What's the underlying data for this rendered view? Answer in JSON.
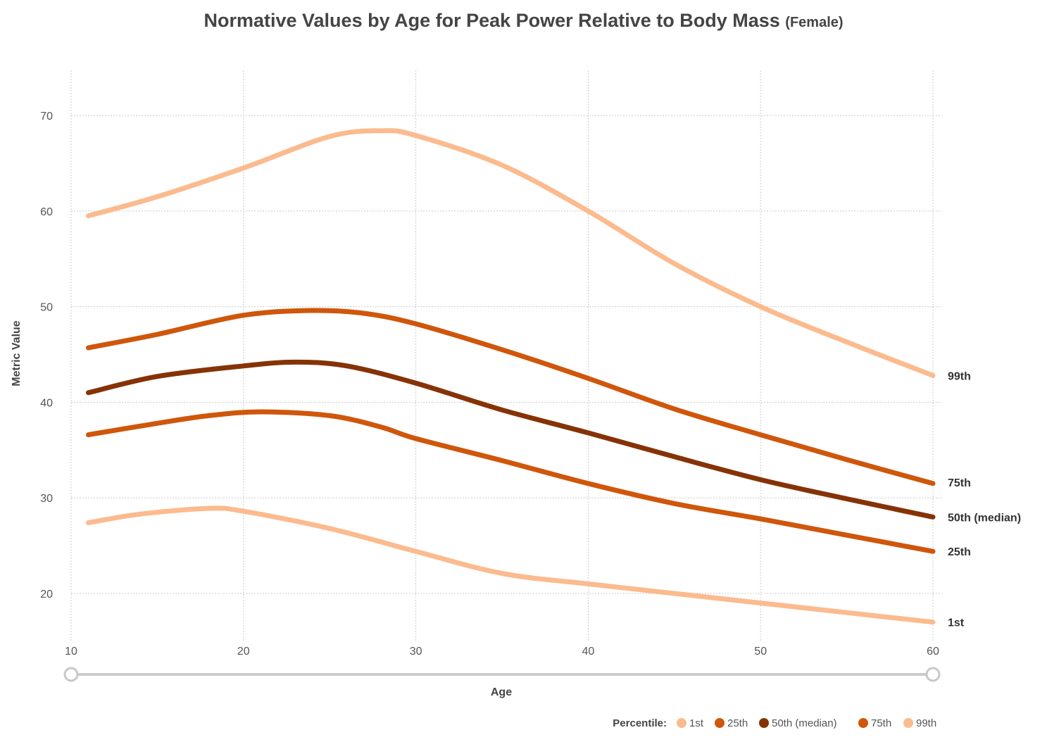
{
  "chart_data": {
    "type": "line",
    "title": "Normative Values by Age for Peak Power Relative to Body Mass",
    "subtitle": "(Female)",
    "xlabel": "Age",
    "ylabel": "Metric Value",
    "xlim": [
      10,
      60
    ],
    "ylim": [
      15,
      75
    ],
    "x_ticks": [
      10,
      20,
      30,
      40,
      50,
      60
    ],
    "y_ticks": [
      20,
      30,
      40,
      50,
      60,
      70
    ],
    "legend_title": "Percentile:",
    "legend_position": "bottom-right",
    "slider": {
      "min": 10,
      "max": 60
    },
    "series": [
      {
        "name": "1st",
        "end_label": "1st",
        "color": "#fbbb8e",
        "x": [
          11,
          14,
          18,
          20,
          25,
          30,
          35,
          40,
          45,
          50,
          55,
          60
        ],
        "values": [
          27.4,
          28.3,
          28.9,
          28.6,
          26.8,
          24.4,
          22.1,
          21.0,
          20.0,
          19.0,
          18.0,
          17.0
        ]
      },
      {
        "name": "25th",
        "end_label": "25th",
        "color": "#cf560b",
        "x": [
          11,
          15,
          18,
          21,
          25,
          28,
          30,
          35,
          40,
          45,
          50,
          55,
          60
        ],
        "values": [
          36.6,
          37.8,
          38.6,
          39.0,
          38.6,
          37.4,
          36.2,
          33.9,
          31.5,
          29.4,
          27.8,
          26.1,
          24.4
        ]
      },
      {
        "name": "50th (median)",
        "end_label": "50th (median)",
        "color": "#853306",
        "x": [
          11,
          15,
          20,
          23,
          26,
          30,
          35,
          40,
          45,
          50,
          55,
          60
        ],
        "values": [
          41.0,
          42.7,
          43.8,
          44.2,
          43.8,
          42.0,
          39.2,
          36.8,
          34.3,
          31.9,
          29.9,
          28.0
        ]
      },
      {
        "name": "75th",
        "end_label": "75th",
        "color": "#cf560b",
        "x": [
          11,
          15,
          20,
          24,
          27,
          30,
          35,
          40,
          45,
          50,
          55,
          60
        ],
        "values": [
          45.7,
          47.1,
          49.1,
          49.6,
          49.3,
          48.2,
          45.5,
          42.5,
          39.3,
          36.6,
          34.0,
          31.5
        ]
      },
      {
        "name": "99th",
        "end_label": "99th",
        "color": "#fbbb8e",
        "x": [
          11,
          15,
          20,
          25,
          28,
          30,
          35,
          40,
          45,
          50,
          55,
          60
        ],
        "values": [
          59.5,
          61.5,
          64.5,
          67.8,
          68.4,
          67.9,
          64.8,
          60.0,
          54.5,
          50.0,
          46.3,
          42.8
        ]
      }
    ]
  }
}
